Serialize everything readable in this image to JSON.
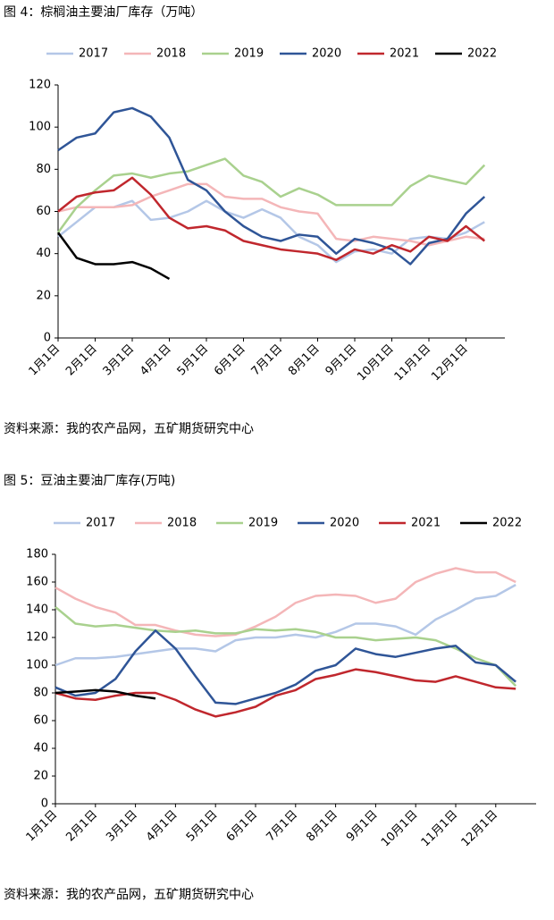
{
  "captions": [
    "图 4：棕榈油主要油厂库存（万吨）",
    "图 5：豆油主要油厂库存(万吨)"
  ],
  "sources": [
    "资料来源：我的农产品网，五矿期货研究中心",
    "资料来源：我的农产品网，五矿期货研究中心"
  ],
  "chart_data": [
    {
      "type": "line",
      "categories": [
        "1月1日",
        null,
        "2月1日",
        null,
        "3月1日",
        null,
        "4月1日",
        null,
        "5月1日",
        null,
        "6月1日",
        null,
        "7月1日",
        null,
        "8月1日",
        null,
        "9月1日",
        null,
        "10月1日",
        null,
        "11月1日",
        null,
        "12月1日",
        null
      ],
      "ylim": [
        0,
        120
      ],
      "yticks": [
        0,
        20,
        40,
        60,
        80,
        100,
        120
      ],
      "series": [
        {
          "name": "2017",
          "color": "#b4c7e7",
          "values": [
            48,
            55,
            62,
            62,
            65,
            56,
            57,
            60,
            65,
            60,
            57,
            61,
            57,
            48,
            44,
            36,
            41,
            42,
            40,
            47,
            48,
            47,
            50,
            55
          ]
        },
        {
          "name": "2018",
          "color": "#f4b6b8",
          "values": [
            60,
            62,
            62,
            62,
            63,
            67,
            70,
            73,
            73,
            67,
            66,
            66,
            62,
            60,
            59,
            47,
            46,
            48,
            47,
            46,
            44,
            46,
            48,
            47
          ]
        },
        {
          "name": "2019",
          "color": "#a9d18e",
          "values": [
            50,
            62,
            70,
            77,
            78,
            76,
            78,
            79,
            82,
            85,
            77,
            74,
            67,
            71,
            68,
            63,
            63,
            63,
            63,
            72,
            77,
            75,
            73,
            82
          ]
        },
        {
          "name": "2020",
          "color": "#2f5597",
          "values": [
            89,
            95,
            97,
            107,
            109,
            105,
            95,
            75,
            70,
            60,
            53,
            48,
            46,
            49,
            48,
            40,
            47,
            45,
            42,
            35,
            45,
            47,
            59,
            67
          ]
        },
        {
          "name": "2021",
          "color": "#c0272d",
          "values": [
            60,
            67,
            69,
            70,
            76,
            68,
            57,
            52,
            53,
            51,
            46,
            44,
            42,
            41,
            40,
            37,
            42,
            40,
            44,
            41,
            48,
            46,
            53,
            46
          ]
        },
        {
          "name": "2022",
          "color": "#000000",
          "values": [
            50,
            38,
            35,
            35,
            36,
            33,
            28,
            null,
            null,
            null,
            null,
            null,
            null,
            null,
            null,
            null,
            null,
            null,
            null,
            null,
            null,
            null,
            null,
            null
          ]
        }
      ]
    },
    {
      "type": "line",
      "categories": [
        "1月1日",
        null,
        "2月1日",
        null,
        "3月1日",
        null,
        "4月1日",
        null,
        "5月1日",
        null,
        "6月1日",
        null,
        "7月1日",
        null,
        "8月1日",
        null,
        "9月1日",
        null,
        "10月1日",
        null,
        "11月1日",
        null,
        "12月1日",
        null
      ],
      "ylim": [
        0,
        180
      ],
      "yticks": [
        0,
        20,
        40,
        60,
        80,
        100,
        120,
        140,
        160,
        180
      ],
      "series": [
        {
          "name": "2017",
          "color": "#b4c7e7",
          "values": [
            100,
            105,
            105,
            106,
            108,
            110,
            112,
            112,
            110,
            118,
            120,
            120,
            122,
            120,
            124,
            130,
            130,
            128,
            122,
            133,
            140,
            148,
            150,
            158
          ]
        },
        {
          "name": "2018",
          "color": "#f4b6b8",
          "values": [
            156,
            148,
            142,
            138,
            129,
            129,
            125,
            122,
            121,
            122,
            128,
            135,
            145,
            150,
            151,
            150,
            145,
            148,
            160,
            166,
            170,
            167,
            167,
            160
          ]
        },
        {
          "name": "2019",
          "color": "#a9d18e",
          "values": [
            142,
            130,
            128,
            129,
            127,
            125,
            124,
            125,
            123,
            123,
            126,
            125,
            126,
            124,
            120,
            120,
            118,
            119,
            120,
            118,
            112,
            105,
            100,
            85
          ]
        },
        {
          "name": "2020",
          "color": "#2f5597",
          "values": [
            84,
            78,
            80,
            90,
            110,
            125,
            112,
            92,
            73,
            72,
            76,
            80,
            86,
            96,
            100,
            112,
            108,
            106,
            109,
            112,
            114,
            102,
            100,
            88
          ]
        },
        {
          "name": "2021",
          "color": "#c0272d",
          "values": [
            80,
            76,
            75,
            78,
            80,
            80,
            75,
            68,
            63,
            66,
            70,
            78,
            82,
            90,
            93,
            97,
            95,
            92,
            89,
            88,
            92,
            88,
            84,
            83
          ]
        },
        {
          "name": "2022",
          "color": "#000000",
          "values": [
            80,
            81,
            82,
            81,
            78,
            76,
            null,
            null,
            null,
            null,
            null,
            null,
            null,
            null,
            null,
            null,
            null,
            null,
            null,
            null,
            null,
            null,
            null,
            null
          ]
        }
      ]
    }
  ]
}
